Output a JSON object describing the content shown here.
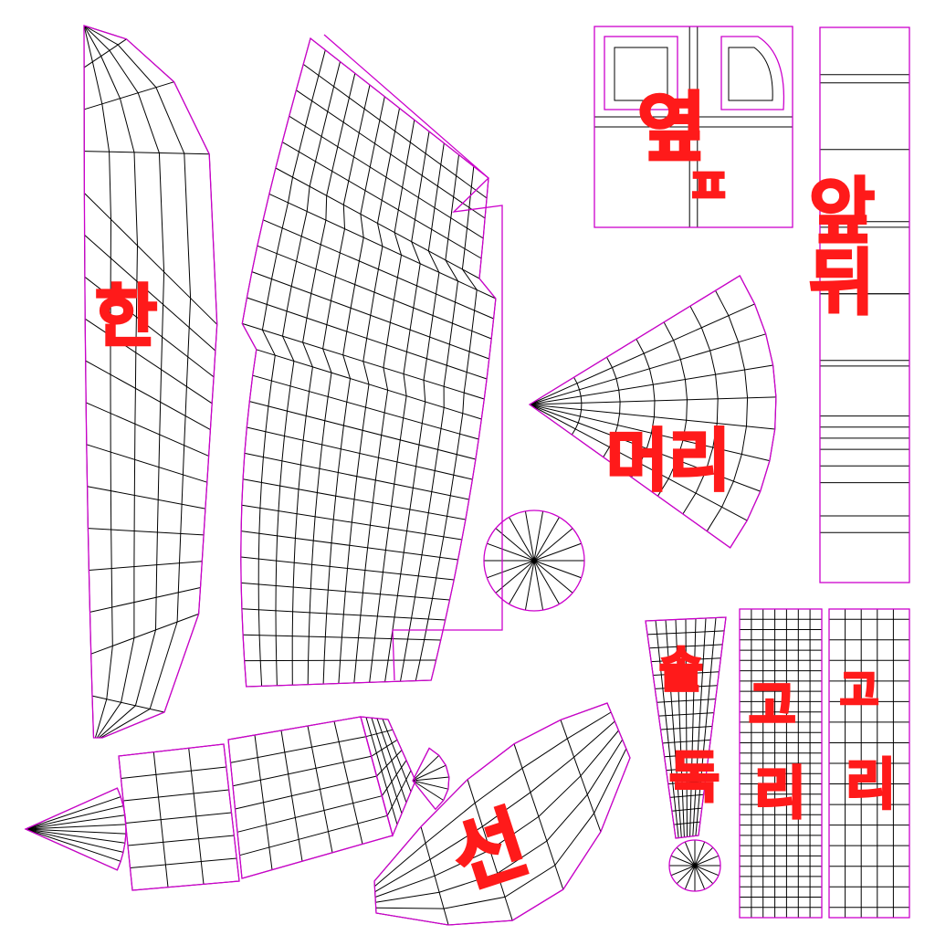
{
  "canvas": {
    "background": "#ffffff"
  },
  "colors": {
    "outline": "#cc00cc",
    "wire": "#000000",
    "annotation": "#ff1a1a"
  },
  "annotations": {
    "left_long": "한",
    "top_square": "옆",
    "top_square_b": "ㅍ",
    "right_column": "앞뒤",
    "fan": "머리",
    "bottom_leaf": "선",
    "taper": "솔",
    "taper_b": "독",
    "strip1": "고",
    "strip1_b": "리",
    "strip2": "고",
    "strip2_b": "리"
  }
}
